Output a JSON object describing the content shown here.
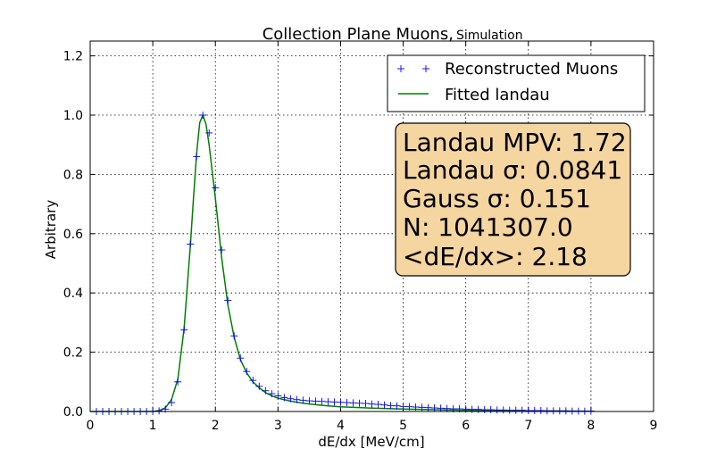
{
  "chart_data": {
    "type": "line",
    "title": "Collection Plane Muons,",
    "subtitle": "Simulation",
    "xlabel": "dE/dx [MeV/cm]",
    "ylabel": "Arbitrary",
    "xlim": [
      0,
      9
    ],
    "ylim": [
      0,
      1.25
    ],
    "xticks": [
      "0",
      "1",
      "2",
      "3",
      "4",
      "5",
      "6",
      "7",
      "8",
      "9"
    ],
    "yticks": [
      "0.0",
      "0.2",
      "0.4",
      "0.6",
      "0.8",
      "1.0",
      "1.2"
    ],
    "grid": true,
    "legend_position": "top-right",
    "colors": {
      "reconstructed": "#0000ff",
      "fit": "#007f00",
      "stats_box": "#f5d5a0"
    },
    "series": [
      {
        "name": "Reconstructed Muons",
        "style": "markers",
        "x": [
          0.1,
          0.2,
          0.3,
          0.4,
          0.5,
          0.6,
          0.7,
          0.8,
          0.9,
          1.0,
          1.1,
          1.2,
          1.3,
          1.4,
          1.5,
          1.6,
          1.7,
          1.8,
          1.9,
          2.0,
          2.1,
          2.2,
          2.3,
          2.4,
          2.5,
          2.6,
          2.7,
          2.8,
          2.9,
          3.0,
          3.1,
          3.2,
          3.3,
          3.4,
          3.5,
          3.6,
          3.7,
          3.8,
          3.9,
          4.0,
          4.1,
          4.2,
          4.3,
          4.4,
          4.5,
          4.6,
          4.7,
          4.8,
          4.9,
          5.0,
          5.1,
          5.2,
          5.3,
          5.4,
          5.5,
          5.6,
          5.7,
          5.8,
          5.9,
          6.0,
          6.1,
          6.2,
          6.3,
          6.4,
          6.5,
          6.6,
          6.7,
          6.8,
          6.9,
          7.0,
          7.1,
          7.2,
          7.3,
          7.4,
          7.5,
          7.6,
          7.7,
          7.8,
          7.9,
          8.0
        ],
        "y": [
          0.0,
          0.0,
          0.0,
          0.0,
          0.0,
          0.0,
          0.0,
          0.0,
          0.0,
          0.0,
          0.002,
          0.008,
          0.03,
          0.1,
          0.275,
          0.565,
          0.86,
          1.0,
          0.94,
          0.755,
          0.545,
          0.375,
          0.255,
          0.18,
          0.135,
          0.105,
          0.085,
          0.07,
          0.06,
          0.053,
          0.047,
          0.043,
          0.04,
          0.038,
          0.036,
          0.035,
          0.034,
          0.033,
          0.032,
          0.031,
          0.03,
          0.029,
          0.028,
          0.027,
          0.025,
          0.024,
          0.022,
          0.02,
          0.019,
          0.017,
          0.016,
          0.015,
          0.014,
          0.013,
          0.012,
          0.011,
          0.01,
          0.009,
          0.009,
          0.008,
          0.007,
          0.007,
          0.006,
          0.006,
          0.005,
          0.005,
          0.004,
          0.004,
          0.004,
          0.003,
          0.003,
          0.003,
          0.002,
          0.002,
          0.002,
          0.002,
          0.001,
          0.001,
          0.001,
          0.001
        ]
      },
      {
        "name": "Fitted landau",
        "style": "line",
        "x": [
          0,
          0.5,
          1.0,
          1.1,
          1.2,
          1.3,
          1.4,
          1.5,
          1.6,
          1.65,
          1.7,
          1.75,
          1.8,
          1.85,
          1.9,
          2.0,
          2.1,
          2.2,
          2.3,
          2.4,
          2.5,
          2.6,
          2.7,
          2.8,
          2.9,
          3.0,
          3.2,
          3.4,
          3.6,
          3.8,
          4.0,
          4.5,
          5.0,
          5.5,
          6.0,
          6.5,
          7.0,
          7.5,
          8.05
        ],
        "y": [
          0.0,
          0.0,
          0.0,
          0.003,
          0.012,
          0.04,
          0.11,
          0.28,
          0.56,
          0.72,
          0.87,
          0.975,
          1.0,
          0.97,
          0.9,
          0.72,
          0.52,
          0.36,
          0.25,
          0.175,
          0.13,
          0.1,
          0.08,
          0.064,
          0.053,
          0.045,
          0.035,
          0.028,
          0.023,
          0.019,
          0.016,
          0.011,
          0.008,
          0.006,
          0.004,
          0.003,
          0.002,
          0.0015,
          0.001
        ]
      }
    ],
    "annotations": [
      "Landau MPV: 1.72",
      "Landau σ: 0.0841",
      "Gauss σ: 0.151",
      "N: 1041307.0",
      "<dE/dx>: 2.18"
    ]
  }
}
